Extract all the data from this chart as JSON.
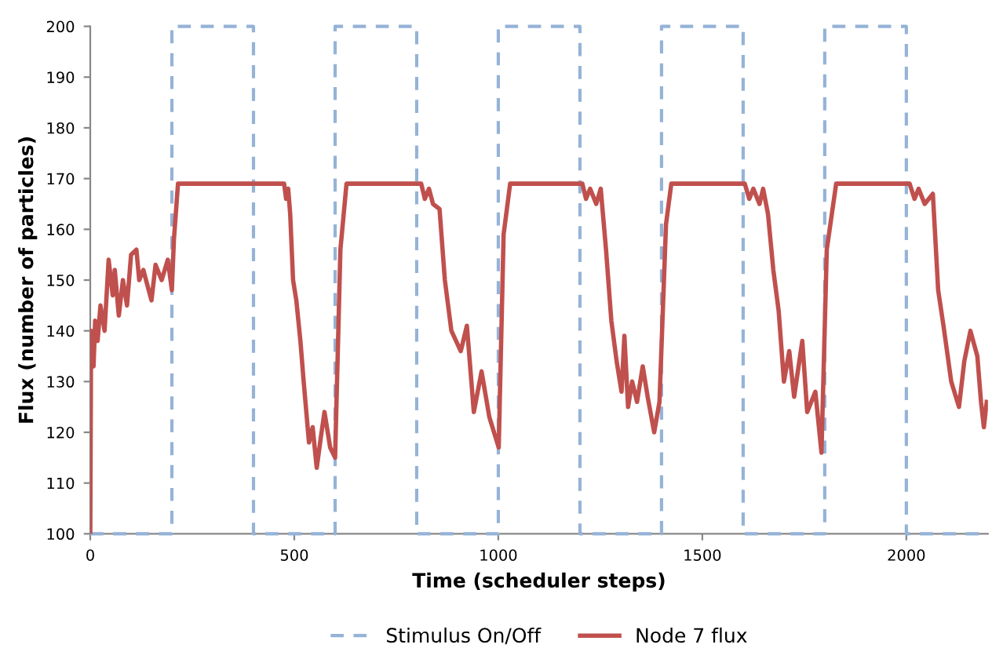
{
  "chart_data": {
    "type": "line",
    "xlabel": "Time (scheduler steps)",
    "ylabel": "Flux (number of particles)",
    "xlim": [
      0,
      2200
    ],
    "xticks": [
      0,
      500,
      1000,
      1500,
      2000
    ],
    "ylim": [
      100,
      200
    ],
    "yticks": [
      100,
      110,
      120,
      130,
      140,
      150,
      160,
      170,
      180,
      190,
      200
    ],
    "grid": false,
    "legend": "bottom",
    "marker": "none",
    "series": [
      {
        "name": "Stimulus On/Off",
        "type": "step",
        "color": "#95b3d7",
        "line_style": "dashed",
        "x": [
          0,
          200,
          400,
          600,
          800,
          1000,
          1200,
          1400,
          1600,
          1800,
          2000,
          2200
        ],
        "values": [
          100,
          200,
          100,
          200,
          100,
          200,
          100,
          200,
          100,
          200,
          100,
          100
        ]
      },
      {
        "name": "Node 7 flux",
        "color": "#c0504d",
        "line_style": "solid",
        "x": [
          0,
          2,
          8,
          12,
          18,
          25,
          35,
          45,
          55,
          60,
          70,
          80,
          90,
          100,
          113,
          120,
          130,
          140,
          150,
          160,
          175,
          190,
          200,
          205,
          215,
          475,
          480,
          485,
          490,
          497,
          505,
          515,
          523,
          536,
          545,
          555,
          565,
          574,
          588,
          600,
          613,
          628,
          811,
          820,
          830,
          840,
          856,
          869,
          885,
          908,
          923,
          940,
          959,
          978,
          1001,
          1013,
          1029,
          1206,
          1215,
          1225,
          1240,
          1251,
          1264,
          1277,
          1290,
          1302,
          1309,
          1318,
          1328,
          1340,
          1354,
          1366,
          1382,
          1395,
          1411,
          1424,
          1604,
          1615,
          1625,
          1640,
          1649,
          1661,
          1674,
          1687,
          1700,
          1713,
          1725,
          1745,
          1757,
          1777,
          1792,
          1805,
          1828,
          2008,
          2020,
          2030,
          2045,
          2065,
          2078,
          2091,
          2110,
          2129,
          2142,
          2157,
          2174,
          2183,
          2190,
          2197
        ],
        "values": [
          100,
          140,
          133,
          142,
          138,
          145,
          140,
          154,
          147,
          152,
          143,
          150,
          145,
          155,
          156,
          150,
          152,
          149,
          146,
          153,
          150,
          154,
          148,
          158,
          169,
          169,
          166,
          168,
          163,
          150,
          146,
          138,
          130,
          118,
          121,
          113,
          119,
          124,
          117,
          115,
          156,
          169,
          169,
          166,
          168,
          165,
          164,
          150,
          140,
          136,
          141,
          124,
          132,
          123,
          117,
          159,
          169,
          169,
          166,
          168,
          165,
          168,
          156,
          142,
          134,
          128,
          139,
          125,
          130,
          126,
          133,
          127,
          120,
          126,
          161,
          169,
          169,
          166,
          168,
          165,
          168,
          163,
          152,
          144,
          130,
          136,
          127,
          138,
          124,
          128,
          116,
          156,
          169,
          169,
          166,
          168,
          165,
          167,
          148,
          141,
          130,
          125,
          134,
          140,
          135,
          126,
          121,
          126
        ]
      }
    ]
  }
}
